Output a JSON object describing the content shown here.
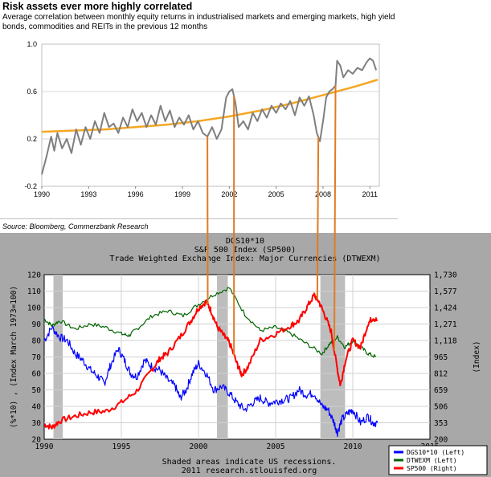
{
  "top_chart": {
    "title": "Risk assets ever more highly correlated",
    "subtitle": "Average correlation between monthly equity returns in industrialised markets and emerging markets, high yield bonds, commodities and REITs in the previous 12 months",
    "source": "Source: Bloomberg, Commerzbank Research"
  },
  "bottom_chart": {
    "title_lines": [
      "DGS10*10",
      "S&P 500 Index (SP500)",
      "Trade Weighted Exchange Index: Major Currencies (DTWEXM)"
    ],
    "left_axis_label": "(%*10) , (Index March 1973=100)",
    "right_axis_label": "(Index)",
    "footer_lines": [
      "Shaded areas indicate US recessions.",
      "2011 research.stlouisfed.org"
    ]
  },
  "colors": {
    "correlation": "#7f7f7f",
    "trend": "#f5a623",
    "dgs10": "#0000ff",
    "dtwexm": "#006400",
    "sp500": "#ff0000",
    "recession": "#bdbdbd",
    "connector": "#e07b22"
  },
  "chart_data": [
    {
      "type": "line",
      "title": "Risk assets ever more highly correlated",
      "xlim": [
        1990,
        2011.6
      ],
      "x_ticks": [
        "1990",
        "1993",
        "1996",
        "1999",
        "2002",
        "2005",
        "2008",
        "2011"
      ],
      "x_tick_values": [
        1990,
        1993,
        1996,
        1999,
        2002,
        2005,
        2008,
        2011
      ],
      "ylim": [
        -0.2,
        1.0
      ],
      "y_ticks": [
        "1.0",
        "0.6",
        "0.2",
        "-0.2"
      ],
      "y_tick_values": [
        1.0,
        0.6,
        0.2,
        -0.2
      ],
      "series": [
        {
          "name": "Average correlation",
          "color": "#7f7f7f",
          "x": [
            1990,
            1990.3,
            1990.6,
            1990.8,
            1991,
            1991.3,
            1991.6,
            1991.9,
            1992.2,
            1992.5,
            1992.8,
            1993.1,
            1993.4,
            1993.7,
            1994,
            1994.3,
            1994.6,
            1994.9,
            1995.2,
            1995.5,
            1995.8,
            1996.1,
            1996.4,
            1996.7,
            1997,
            1997.3,
            1997.6,
            1997.9,
            1998.2,
            1998.5,
            1998.8,
            1999.1,
            1999.4,
            1999.7,
            2000,
            2000.3,
            2000.6,
            2000.9,
            2001.2,
            2001.5,
            2001.8,
            2002,
            2002.2,
            2002.4,
            2002.6,
            2002.9,
            2003.2,
            2003.5,
            2003.8,
            2004.1,
            2004.4,
            2004.7,
            2005,
            2005.3,
            2005.6,
            2005.9,
            2006.2,
            2006.5,
            2006.8,
            2007.1,
            2007.4,
            2007.6,
            2007.8,
            2008,
            2008.2,
            2008.4,
            2008.6,
            2008.8,
            2008.9,
            2009.1,
            2009.3,
            2009.6,
            2009.9,
            2010.2,
            2010.5,
            2010.8,
            2011,
            2011.2,
            2011.4
          ],
          "values": [
            -0.1,
            0.05,
            0.22,
            0.1,
            0.25,
            0.12,
            0.2,
            0.08,
            0.28,
            0.15,
            0.3,
            0.2,
            0.35,
            0.25,
            0.42,
            0.3,
            0.33,
            0.25,
            0.38,
            0.3,
            0.45,
            0.35,
            0.42,
            0.3,
            0.4,
            0.32,
            0.48,
            0.35,
            0.44,
            0.3,
            0.38,
            0.32,
            0.4,
            0.28,
            0.35,
            0.25,
            0.22,
            0.3,
            0.2,
            0.28,
            0.55,
            0.6,
            0.62,
            0.5,
            0.3,
            0.35,
            0.28,
            0.42,
            0.35,
            0.45,
            0.38,
            0.48,
            0.42,
            0.5,
            0.45,
            0.52,
            0.4,
            0.55,
            0.48,
            0.56,
            0.4,
            0.25,
            0.18,
            0.35,
            0.55,
            0.6,
            0.62,
            0.65,
            0.86,
            0.82,
            0.72,
            0.78,
            0.75,
            0.8,
            0.78,
            0.85,
            0.88,
            0.86,
            0.78
          ]
        },
        {
          "name": "Trend",
          "color": "#f5a623",
          "x": [
            1990,
            1992,
            1994,
            1996,
            1998,
            2000,
            2002,
            2004,
            2006,
            2008,
            2010,
            2011.5
          ],
          "values": [
            0.26,
            0.27,
            0.28,
            0.3,
            0.32,
            0.35,
            0.39,
            0.44,
            0.5,
            0.57,
            0.64,
            0.7
          ]
        }
      ],
      "recession_markers_x": [
        2000.6,
        2002.3,
        2007.7,
        2008.8
      ]
    },
    {
      "type": "line",
      "title": "DGS10*10 / S&P 500 Index (SP500) / Trade Weighted Exchange Index: Major Currencies (DTWEXM)",
      "xlim": [
        1990,
        2015
      ],
      "x_ticks": [
        "1990",
        "1995",
        "2000",
        "2005",
        "2010",
        "2015"
      ],
      "x_tick_values": [
        1990,
        1995,
        2000,
        2005,
        2010,
        2015
      ],
      "ylim_left": [
        20,
        120
      ],
      "y_ticks_left": [
        "120",
        "110",
        "100",
        "90",
        "80",
        "70",
        "60",
        "50",
        "40",
        "30",
        "20"
      ],
      "y_tick_values_left": [
        120,
        110,
        100,
        90,
        80,
        70,
        60,
        50,
        40,
        30,
        20
      ],
      "ylim_right": [
        200,
        1730
      ],
      "y_ticks_right": [
        "1,730",
        "1,577",
        "1,424",
        "1,271",
        "1,118",
        "965",
        "812",
        "659",
        "506",
        "353",
        "200"
      ],
      "y_tick_values_right": [
        1730,
        1577,
        1424,
        1271,
        1118,
        965,
        812,
        659,
        506,
        353,
        200
      ],
      "recessions": [
        [
          1990.6,
          1991.2
        ],
        [
          2001.2,
          2001.9
        ],
        [
          2007.9,
          2009.5
        ]
      ],
      "legend": [
        {
          "label": "DGS10*10 (Left)",
          "color": "#0000ff"
        },
        {
          "label": "DTWEXM (Left)",
          "color": "#006400"
        },
        {
          "label": "SP500 (Right)",
          "color": "#ff0000"
        }
      ],
      "series": [
        {
          "name": "DGS10*10 (Left)",
          "axis": "left",
          "color": "#0000ff",
          "x": [
            1990,
            1990.5,
            1991,
            1991.5,
            1992,
            1992.5,
            1993,
            1993.5,
            1993.9,
            1994.3,
            1994.8,
            1995.2,
            1995.6,
            1996,
            1996.5,
            1997,
            1997.5,
            1998,
            1998.5,
            1998.8,
            1999.2,
            1999.6,
            2000,
            2000.5,
            2001,
            2001.5,
            2002,
            2002.5,
            2003,
            2003.5,
            2004,
            2004.5,
            2005,
            2005.5,
            2006,
            2006.5,
            2007,
            2007.5,
            2008,
            2008.4,
            2008.8,
            2009,
            2009.3,
            2009.7,
            2010,
            2010.5,
            2011,
            2011.3,
            2011.6
          ],
          "values": [
            80,
            88,
            82,
            80,
            72,
            68,
            62,
            58,
            54,
            65,
            75,
            68,
            60,
            58,
            68,
            64,
            62,
            56,
            52,
            45,
            50,
            60,
            66,
            60,
            50,
            52,
            48,
            42,
            38,
            42,
            45,
            42,
            43,
            44,
            45,
            50,
            47,
            48,
            40,
            38,
            30,
            24,
            32,
            36,
            38,
            30,
            34,
            30,
            30
          ]
        },
        {
          "name": "DTWEXM (Left)",
          "axis": "left",
          "color": "#006400",
          "x": [
            1990,
            1990.5,
            1991,
            1992,
            1993,
            1994,
            1995,
            1995.5,
            1996,
            1997,
            1998,
            1999,
            2000,
            2001,
            2002,
            2003,
            2004,
            2005,
            2006,
            2007,
            2008,
            2008.5,
            2009,
            2009.5,
            2010,
            2010.5,
            2011,
            2011.5
          ],
          "values": [
            93,
            89,
            92,
            87,
            90,
            88,
            84,
            83,
            87,
            95,
            98,
            95,
            102,
            108,
            112,
            96,
            86,
            88,
            84,
            78,
            72,
            78,
            82,
            76,
            80,
            76,
            72,
            70
          ]
        },
        {
          "name": "SP500 (Right)",
          "axis": "right",
          "color": "#ff0000",
          "x": [
            1990,
            1990.5,
            1991,
            1992,
            1993,
            1994,
            1995,
            1996,
            1997,
            1997.5,
            1998,
            1998.8,
            1999.5,
            2000,
            2000.5,
            2000.8,
            2001.2,
            2001.7,
            2002,
            2002.5,
            2002.8,
            2003.2,
            2004,
            2005,
            2006,
            2006.5,
            2007,
            2007.5,
            2007.8,
            2008.2,
            2008.6,
            2009.0,
            2009.2,
            2009.5,
            2010,
            2010.5,
            2011,
            2011.3,
            2011.6
          ],
          "values": [
            340,
            310,
            370,
            415,
            450,
            460,
            540,
            650,
            850,
            950,
            1000,
            1150,
            1300,
            1420,
            1480,
            1400,
            1250,
            1150,
            1100,
            900,
            800,
            870,
            1120,
            1180,
            1260,
            1300,
            1420,
            1540,
            1480,
            1350,
            1200,
            850,
            700,
            920,
            1120,
            1050,
            1280,
            1330,
            1300
          ]
        }
      ]
    }
  ]
}
